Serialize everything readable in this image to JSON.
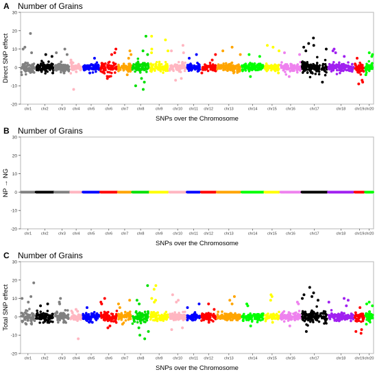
{
  "colors": {
    "chr1": "#808080",
    "chr2": "#000000",
    "chr3": "#808080",
    "chr4": "#ffb6c1",
    "chr5": "#0000ff",
    "chr6": "#ff0000",
    "chr7": "#ffa500",
    "chr8": "#00e000",
    "chr9": "#ffff00",
    "chr10": "#ffb6c1",
    "chr11": "#0000ff",
    "chr12": "#ff0000",
    "chr13": "#ffa500",
    "chr14": "#00ff00",
    "chr15": "#ffff00",
    "chr16": "#ee82ee",
    "chr17": "#000000",
    "chr18": "#a020f0",
    "chr19": "#ff0000",
    "chr20": "#00ff00",
    "frame": "#b5b5b5"
  },
  "chart_data": [
    {
      "panel_letter": "A",
      "type": "scatter",
      "title": "Number of Grains",
      "ylabel": "Direct SNP effect",
      "xlabel": "SNPs over the Chromosome",
      "ylim": [
        -20,
        30
      ],
      "yticks": [
        -20,
        -10,
        0,
        10,
        20,
        30
      ],
      "grid": false,
      "categories": [
        "chr1",
        "chr2",
        "chr3",
        "chr4",
        "chr5",
        "chr6",
        "chr7",
        "chr8",
        "chr9",
        "chr10",
        "chr11",
        "chr12",
        "chr13",
        "chr14",
        "chr15",
        "chr16",
        "chr17",
        "chr18",
        "chr19",
        "chr20"
      ],
      "spread": [
        2.6,
        2.2,
        2.0,
        1.6,
        1.6,
        2.4,
        1.8,
        2.4,
        2.0,
        1.8,
        1.6,
        1.6,
        1.8,
        1.8,
        1.6,
        2.0,
        2.8,
        1.8,
        2.2,
        2.0
      ],
      "outliers": [
        {
          "chr": "chr1",
          "values": [
            18.5,
            11,
            10,
            8,
            -4
          ]
        },
        {
          "chr": "chr2",
          "values": [
            7,
            6,
            -3
          ]
        },
        {
          "chr": "chr3",
          "values": [
            10,
            7,
            8,
            -3
          ]
        },
        {
          "chr": "chr4",
          "values": [
            -12,
            3,
            4
          ]
        },
        {
          "chr": "chr5",
          "values": [
            5,
            -3
          ]
        },
        {
          "chr": "chr6",
          "values": [
            10,
            8,
            7,
            -5,
            -6
          ]
        },
        {
          "chr": "chr7",
          "values": [
            9,
            7,
            5,
            -4
          ]
        },
        {
          "chr": "chr8",
          "values": [
            17,
            9,
            7,
            -10,
            -12,
            -8,
            -6
          ]
        },
        {
          "chr": "chr9",
          "values": [
            17,
            15,
            9,
            10,
            8
          ]
        },
        {
          "chr": "chr10",
          "values": [
            12,
            9,
            8,
            -6,
            -7
          ]
        },
        {
          "chr": "chr11",
          "values": [
            7,
            5
          ]
        },
        {
          "chr": "chr12",
          "values": [
            7,
            4,
            -3
          ]
        },
        {
          "chr": "chr13",
          "values": [
            11,
            7,
            9
          ]
        },
        {
          "chr": "chr14",
          "values": [
            7,
            6,
            -5
          ]
        },
        {
          "chr": "chr15",
          "values": [
            12,
            11,
            9,
            -3
          ]
        },
        {
          "chr": "chr16",
          "values": [
            8,
            7,
            -5
          ]
        },
        {
          "chr": "chr17",
          "values": [
            16,
            13,
            12,
            11,
            10,
            9,
            -8
          ]
        },
        {
          "chr": "chr18",
          "values": [
            10,
            9,
            8,
            6
          ]
        },
        {
          "chr": "chr19",
          "values": [
            5,
            -7,
            -9,
            -8
          ]
        },
        {
          "chr": "chr20",
          "values": [
            7,
            8,
            6,
            -4
          ]
        }
      ]
    },
    {
      "panel_letter": "B",
      "type": "scatter",
      "title": "Number of Grains",
      "ylabel": "NP → NG",
      "xlabel": "SNPs over the Chromosome",
      "ylim": [
        -20,
        30
      ],
      "yticks": [
        -20,
        -10,
        0,
        10,
        20,
        30
      ],
      "grid": false,
      "categories": [
        "chr1",
        "chr2",
        "chr3",
        "chr4",
        "chr5",
        "chr6",
        "chr7",
        "chr8",
        "chr9",
        "chr10",
        "chr11",
        "chr12",
        "chr13",
        "chr14",
        "chr15",
        "chr16",
        "chr17",
        "chr18",
        "chr19",
        "chr20"
      ],
      "spread": [
        0,
        0,
        0,
        0,
        0,
        0,
        0,
        0,
        0,
        0,
        0,
        0,
        0,
        0,
        0,
        0,
        0,
        0,
        0,
        0
      ],
      "outliers": []
    },
    {
      "panel_letter": "C",
      "type": "scatter",
      "title": "Number of Grains",
      "ylabel": "Total SNP effect",
      "xlabel": "SNPs over the Chromosome",
      "ylim": [
        -20,
        30
      ],
      "yticks": [
        -20,
        -10,
        0,
        10,
        20,
        30
      ],
      "grid": false,
      "categories": [
        "chr1",
        "chr2",
        "chr3",
        "chr4",
        "chr5",
        "chr6",
        "chr7",
        "chr8",
        "chr9",
        "chr10",
        "chr11",
        "chr12",
        "chr13",
        "chr14",
        "chr15",
        "chr16",
        "chr17",
        "chr18",
        "chr19",
        "chr20"
      ],
      "spread": [
        2.6,
        2.2,
        2.0,
        1.6,
        1.6,
        2.4,
        1.8,
        2.4,
        2.0,
        1.8,
        1.6,
        1.6,
        1.8,
        1.8,
        1.6,
        2.0,
        2.8,
        1.8,
        2.2,
        2.0
      ],
      "outliers": [
        {
          "chr": "chr1",
          "values": [
            18.5,
            11,
            10,
            8,
            -4
          ]
        },
        {
          "chr": "chr2",
          "values": [
            7,
            6,
            -3
          ]
        },
        {
          "chr": "chr3",
          "values": [
            10,
            7,
            8,
            -3
          ]
        },
        {
          "chr": "chr4",
          "values": [
            -12,
            3,
            4
          ]
        },
        {
          "chr": "chr5",
          "values": [
            5,
            -3
          ]
        },
        {
          "chr": "chr6",
          "values": [
            10,
            8,
            7,
            -5,
            -6
          ]
        },
        {
          "chr": "chr7",
          "values": [
            9,
            7,
            5,
            -4
          ]
        },
        {
          "chr": "chr8",
          "values": [
            17,
            9,
            7,
            -10,
            -12,
            -8,
            -6
          ]
        },
        {
          "chr": "chr9",
          "values": [
            17,
            15,
            9,
            10,
            8
          ]
        },
        {
          "chr": "chr10",
          "values": [
            12,
            9,
            8,
            -6,
            -7
          ]
        },
        {
          "chr": "chr11",
          "values": [
            7,
            5
          ]
        },
        {
          "chr": "chr12",
          "values": [
            7,
            4,
            -3
          ]
        },
        {
          "chr": "chr13",
          "values": [
            11,
            7,
            9
          ]
        },
        {
          "chr": "chr14",
          "values": [
            7,
            6,
            -5
          ]
        },
        {
          "chr": "chr15",
          "values": [
            12,
            11,
            9,
            -3
          ]
        },
        {
          "chr": "chr16",
          "values": [
            8,
            7,
            -5
          ]
        },
        {
          "chr": "chr17",
          "values": [
            16,
            13,
            12,
            11,
            10,
            9,
            -8
          ]
        },
        {
          "chr": "chr18",
          "values": [
            10,
            9,
            8,
            6
          ]
        },
        {
          "chr": "chr19",
          "values": [
            5,
            -7,
            -9,
            -8
          ]
        },
        {
          "chr": "chr20",
          "values": [
            7,
            8,
            6,
            -4
          ]
        }
      ]
    }
  ]
}
